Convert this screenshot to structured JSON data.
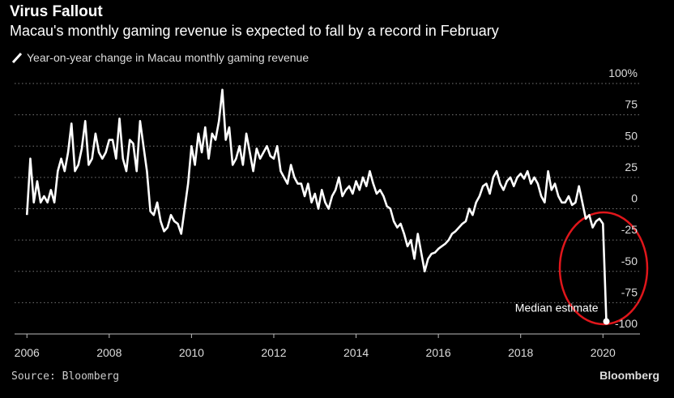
{
  "chart_data": {
    "type": "line",
    "title": "Virus Fallout",
    "subtitle": "Macau's monthly gaming revenue is expected to fall by a record in February",
    "annotation": "Median estimate",
    "source": "Source: Bloomberg",
    "brand": "Bloomberg",
    "xlim": [
      2005.7,
      2020.9
    ],
    "xticks": [
      2006,
      2008,
      2010,
      2012,
      2014,
      2016,
      2018,
      2020
    ],
    "ylim": [
      -100,
      100
    ],
    "yticks": [
      -100,
      -75,
      -50,
      -25,
      0,
      25,
      50,
      75,
      {
        "value": 100,
        "label": "100%"
      }
    ],
    "grid": true,
    "x": [
      2006,
      2006.083,
      2006.167,
      2006.25,
      2006.333,
      2006.417,
      2006.5,
      2006.583,
      2006.667,
      2006.75,
      2006.833,
      2006.917,
      2007,
      2007.083,
      2007.167,
      2007.25,
      2007.333,
      2007.417,
      2007.5,
      2007.583,
      2007.667,
      2007.75,
      2007.833,
      2007.917,
      2008,
      2008.083,
      2008.167,
      2008.25,
      2008.333,
      2008.417,
      2008.5,
      2008.583,
      2008.667,
      2008.75,
      2008.833,
      2008.917,
      2009,
      2009.083,
      2009.167,
      2009.25,
      2009.333,
      2009.417,
      2009.5,
      2009.583,
      2009.667,
      2009.75,
      2009.833,
      2009.917,
      2010,
      2010.083,
      2010.167,
      2010.25,
      2010.333,
      2010.417,
      2010.5,
      2010.583,
      2010.667,
      2010.75,
      2010.833,
      2010.917,
      2011,
      2011.083,
      2011.167,
      2011.25,
      2011.333,
      2011.417,
      2011.5,
      2011.583,
      2011.667,
      2011.75,
      2011.833,
      2011.917,
      2012,
      2012.083,
      2012.167,
      2012.25,
      2012.333,
      2012.417,
      2012.5,
      2012.583,
      2012.667,
      2012.75,
      2012.833,
      2012.917,
      2013,
      2013.083,
      2013.167,
      2013.25,
      2013.333,
      2013.417,
      2013.5,
      2013.583,
      2013.667,
      2013.75,
      2013.833,
      2013.917,
      2014,
      2014.083,
      2014.167,
      2014.25,
      2014.333,
      2014.417,
      2014.5,
      2014.583,
      2014.667,
      2014.75,
      2014.833,
      2014.917,
      2015,
      2015.083,
      2015.167,
      2015.25,
      2015.333,
      2015.417,
      2015.5,
      2015.583,
      2015.667,
      2015.75,
      2015.833,
      2015.917,
      2016,
      2016.083,
      2016.167,
      2016.25,
      2016.333,
      2016.417,
      2016.5,
      2016.583,
      2016.667,
      2016.75,
      2016.833,
      2016.917,
      2017,
      2017.083,
      2017.167,
      2017.25,
      2017.333,
      2017.417,
      2017.5,
      2017.583,
      2017.667,
      2017.75,
      2017.833,
      2017.917,
      2018,
      2018.083,
      2018.167,
      2018.25,
      2018.333,
      2018.417,
      2018.5,
      2018.583,
      2018.667,
      2018.75,
      2018.833,
      2018.917,
      2019,
      2019.083,
      2019.167,
      2019.25,
      2019.333,
      2019.417,
      2019.5,
      2019.583,
      2019.667,
      2019.75,
      2019.833,
      2019.917,
      2020,
      2020.083
    ],
    "series": [
      {
        "name": "Year-on-year change in Macau monthly gaming revenue",
        "color": "#ffffff",
        "values": [
          -5,
          40,
          5,
          22,
          5,
          10,
          5,
          15,
          5,
          30,
          40,
          30,
          45,
          68,
          30,
          35,
          48,
          70,
          35,
          40,
          60,
          45,
          40,
          45,
          55,
          55,
          40,
          72,
          40,
          30,
          55,
          52,
          30,
          70,
          50,
          30,
          -2,
          -5,
          5,
          -10,
          -18,
          -15,
          -5,
          -10,
          -12,
          -20,
          0,
          20,
          50,
          35,
          60,
          45,
          65,
          40,
          60,
          55,
          70,
          95,
          55,
          65,
          35,
          40,
          50,
          35,
          60,
          45,
          30,
          48,
          40,
          45,
          50,
          42,
          40,
          50,
          30,
          25,
          20,
          35,
          25,
          20,
          20,
          10,
          20,
          5,
          12,
          0,
          15,
          5,
          0,
          10,
          15,
          25,
          10,
          15,
          18,
          12,
          22,
          15,
          25,
          18,
          30,
          20,
          12,
          15,
          10,
          2,
          0,
          -10,
          -15,
          -12,
          -20,
          -30,
          -25,
          -40,
          -20,
          -35,
          -50,
          -40,
          -36,
          -35,
          -32,
          -30,
          -28,
          -25,
          -20,
          -18,
          -15,
          -12,
          -10,
          0,
          -5,
          5,
          10,
          18,
          20,
          12,
          25,
          30,
          20,
          15,
          22,
          25,
          18,
          25,
          28,
          24,
          30,
          20,
          25,
          20,
          10,
          5,
          30,
          15,
          20,
          10,
          5,
          5,
          10,
          3,
          5,
          18,
          5,
          -8,
          -5,
          -15,
          -10,
          -8,
          -12,
          -90
        ]
      }
    ]
  }
}
